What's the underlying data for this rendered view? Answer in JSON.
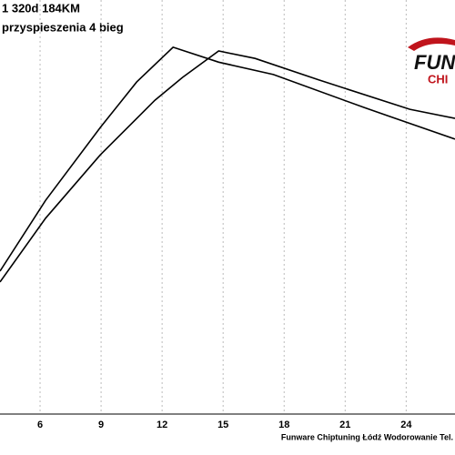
{
  "chart_data": {
    "type": "line",
    "title": "1 320d 184KM",
    "subtitle": "przyspieszenia 4 bieg",
    "footer": "Funware Chiptuning Łódź Wodorowanie Tel.",
    "logo_top": "FUN",
    "logo_bottom": "CHI",
    "series": [
      {
        "color": "#000000",
        "x": [
          4.03,
          6.27,
          8.96,
          10.75,
          12.54,
          14.78,
          17.47,
          21.95,
          26.4
        ],
        "values": [
          34.5,
          51.6,
          69.2,
          80.2,
          88.6,
          85.0,
          82.0,
          74.0,
          66.4
        ]
      },
      {
        "color": "#000000",
        "x": [
          4.03,
          6.27,
          8.96,
          11.65,
          13.0,
          14.78,
          16.57,
          19.7,
          24.18,
          26.4
        ],
        "values": [
          31.9,
          47.3,
          62.6,
          75.8,
          81.3,
          87.7,
          85.9,
          80.7,
          73.6,
          71.4
        ]
      }
    ],
    "xlim": [
      4.03,
      26.4
    ],
    "ylim": [
      0,
      100
    ],
    "xticks": [
      6,
      9,
      12,
      15,
      18,
      21,
      24
    ],
    "grid": true
  }
}
